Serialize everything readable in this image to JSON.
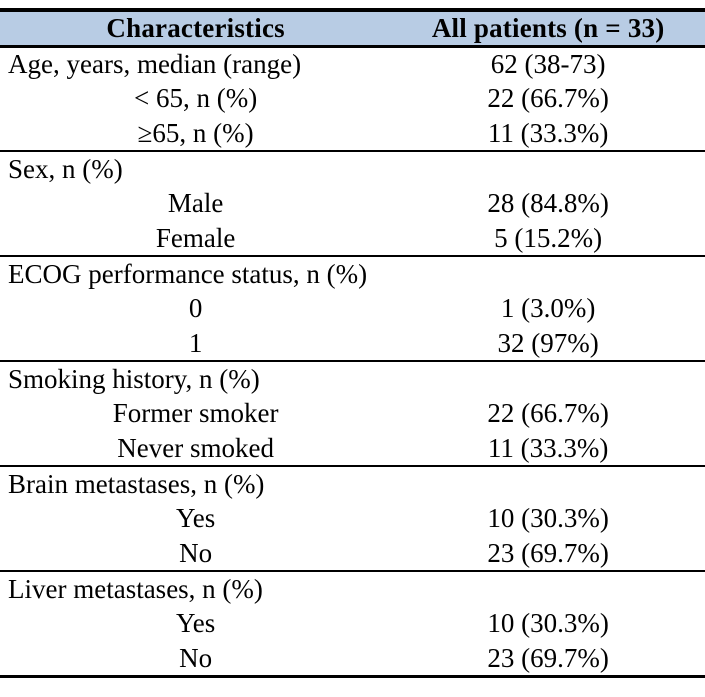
{
  "colors": {
    "header_bg": "#b8cce4",
    "border": "#000000",
    "text": "#000000"
  },
  "header": {
    "col1": "Characteristics",
    "col2": "All patients (n = 33)"
  },
  "rows": [
    {
      "type": "section",
      "label": "Age, years, median (range)",
      "value": "62 (38-73)"
    },
    {
      "type": "sub",
      "label": "< 65, n (%)",
      "value": "22 (66.7%)"
    },
    {
      "type": "sub",
      "label": "≥65, n (%)",
      "value": "11 (33.3%)"
    },
    {
      "type": "section",
      "label": "Sex, n (%)",
      "value": ""
    },
    {
      "type": "sub",
      "label": "Male",
      "value": "28 (84.8%)"
    },
    {
      "type": "sub",
      "label": "Female",
      "value": "5 (15.2%)"
    },
    {
      "type": "section",
      "label": "ECOG performance status, n (%)",
      "value": ""
    },
    {
      "type": "sub",
      "label": "0",
      "value": "1 (3.0%)"
    },
    {
      "type": "sub",
      "label": "1",
      "value": "32 (97%)"
    },
    {
      "type": "section",
      "label": "Smoking history, n (%)",
      "value": ""
    },
    {
      "type": "sub",
      "label": "Former smoker",
      "value": "22 (66.7%)"
    },
    {
      "type": "sub",
      "label": "Never smoked",
      "value": "11 (33.3%)"
    },
    {
      "type": "section",
      "label": "Brain metastases, n (%)",
      "value": ""
    },
    {
      "type": "sub",
      "label": "Yes",
      "value": "10 (30.3%)"
    },
    {
      "type": "sub",
      "label": "No",
      "value": "23 (69.7%)"
    },
    {
      "type": "section",
      "label": "Liver metastases, n (%)",
      "value": ""
    },
    {
      "type": "sub",
      "label": "Yes",
      "value": "10 (30.3%)"
    },
    {
      "type": "sub",
      "label": "No",
      "value": "23 (69.7%)"
    }
  ]
}
